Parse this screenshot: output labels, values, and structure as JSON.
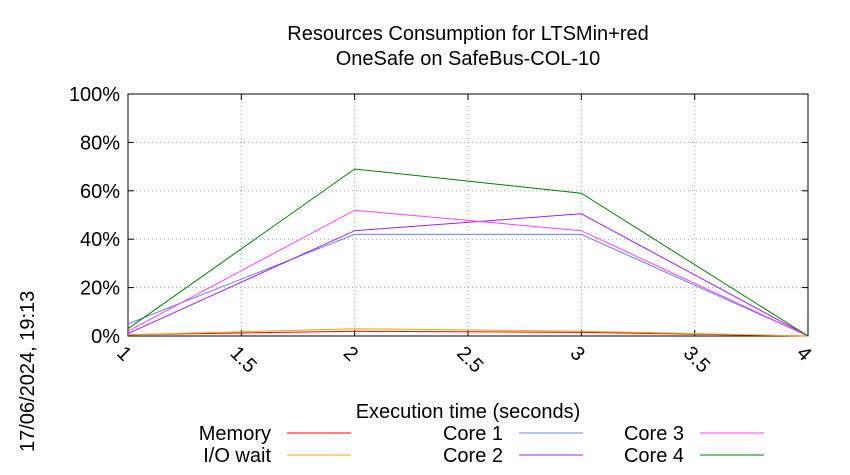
{
  "chart_data": {
    "type": "line",
    "title_lines": [
      "Resources Consumption for LTSMin+red",
      "OneSafe on SafeBus-COL-10"
    ],
    "xlabel": "Execution time (seconds)",
    "ylabel": "",
    "xlim": [
      1,
      4
    ],
    "ylim": [
      0,
      100
    ],
    "x_ticks": [
      "1",
      "1.5",
      "2",
      "2.5",
      "3",
      "3.5",
      "4"
    ],
    "y_ticks": [
      "0%",
      "20%",
      "40%",
      "60%",
      "80%",
      "100%"
    ],
    "grid": true,
    "legend_position": "bottom",
    "timestamp": "17/06/2024, 19:13",
    "x": [
      1,
      2,
      3,
      4
    ],
    "series": [
      {
        "name": "Memory",
        "color": "#ff0000",
        "values": [
          0.5,
          2.0,
          1.5,
          0
        ]
      },
      {
        "name": "I/O wait",
        "color": "#ffa500",
        "values": [
          0.5,
          3.0,
          2.0,
          0
        ]
      },
      {
        "name": "Core 1",
        "color": "#6a7ff0",
        "values": [
          5,
          42,
          42,
          0
        ]
      },
      {
        "name": "Core 2",
        "color": "#a020f0",
        "values": [
          1,
          43.5,
          50.5,
          0
        ]
      },
      {
        "name": "Core 3",
        "color": "#ff40ff",
        "values": [
          2,
          52,
          43.5,
          0
        ]
      },
      {
        "name": "Core 4",
        "color": "#008000",
        "values": [
          3,
          69,
          59,
          0
        ]
      }
    ]
  }
}
